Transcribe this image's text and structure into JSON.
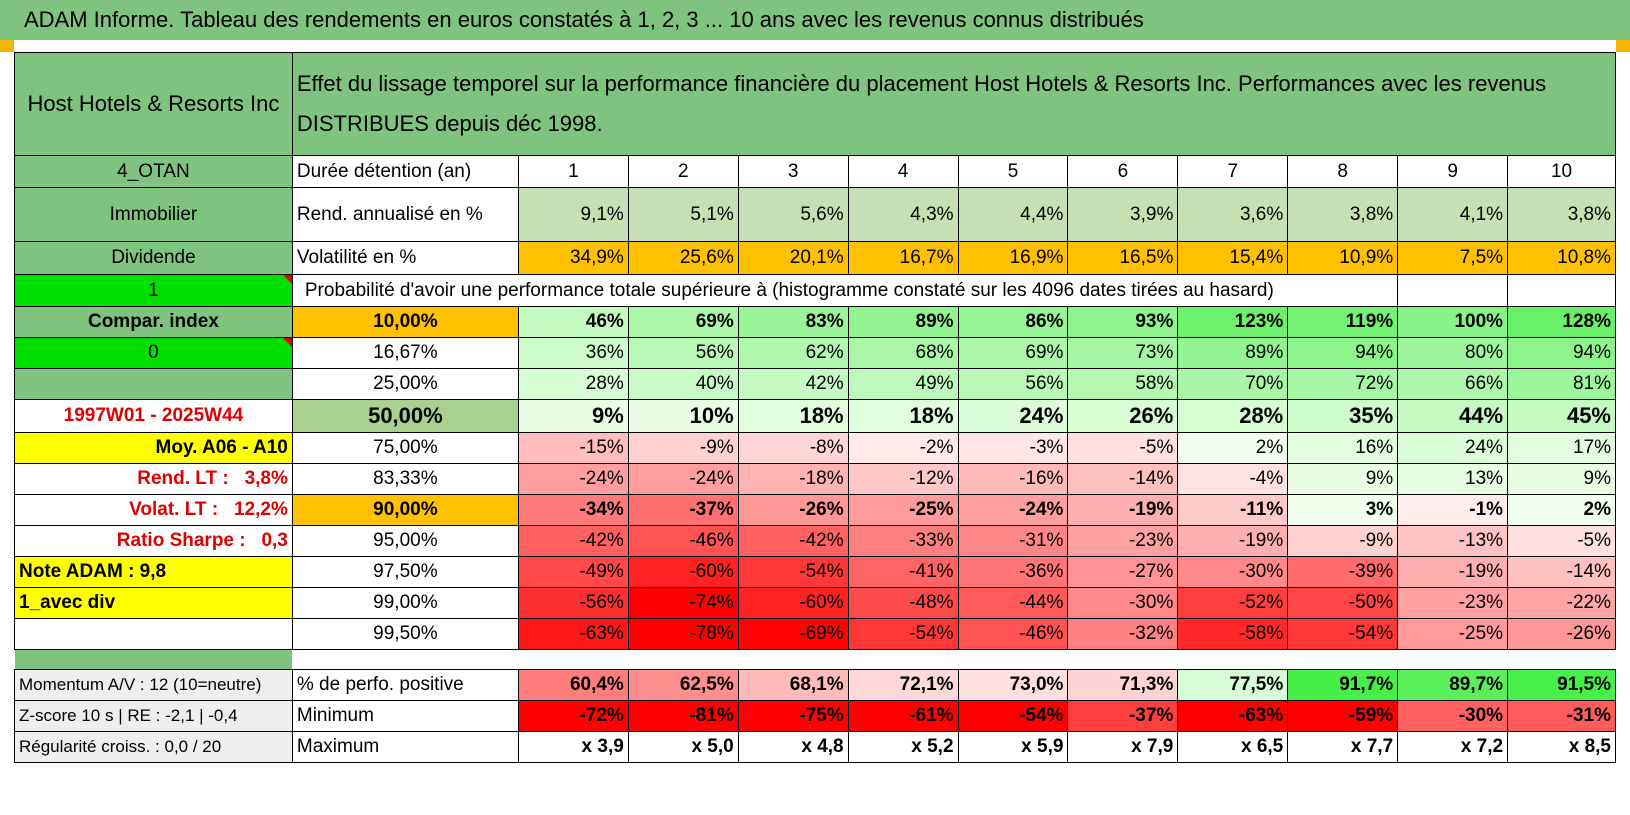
{
  "title": "ADAM Informe. Tableau des rendements en euros constatés à 1, 2, 3 ... 10 ans avec les revenus connus distribués",
  "fund_name": "Host Hotels & Resorts Inc",
  "description": "Effet du lissage temporel sur la performance financière du placement Host Hotels & Resorts Inc. Performances avec les revenus DISTRIBUES depuis déc 1998.",
  "left": {
    "code": "4_OTAN",
    "category": "Immobilier",
    "type": "Dividende",
    "flag1": "1",
    "compar": "Compar. index",
    "flag2": "0",
    "period": "1997W01 - 2025W44",
    "moy": "Moy. A06 - A10",
    "rend_lt_label": "Rend. LT :",
    "rend_lt_value": "3,8%",
    "volat_lt_label": "Volat. LT :",
    "volat_lt_value": "12,2%",
    "sharpe_label": "Ratio Sharpe :",
    "sharpe_value": "0,3",
    "note": "Note ADAM : 9,8",
    "avec_div": "1_avec div",
    "momentum": "Momentum A/V : 12 (10=neutre)",
    "zscore": "Z-score 10 s | RE : -2,1 | -0,4",
    "regularite": "Régularité croiss. : 0,0 / 20"
  },
  "labels": {
    "duree": "Durée détention (an)",
    "rend": "Rend. annualisé en %",
    "volat": "Volatilité en %",
    "proba": "Probabilité d'avoir une performance totale supérieure à (histogramme constaté sur les 4096 dates tirées au hasard)",
    "positive": "% de perfo. positive",
    "minimum": "Minimum",
    "maximum": "Maximum"
  },
  "years": [
    "1",
    "2",
    "3",
    "4",
    "5",
    "6",
    "7",
    "8",
    "9",
    "10"
  ],
  "rend": [
    "9,1%",
    "5,1%",
    "5,6%",
    "4,3%",
    "4,4%",
    "3,9%",
    "3,6%",
    "3,8%",
    "4,1%",
    "3,8%"
  ],
  "volat": [
    "34,9%",
    "25,6%",
    "20,1%",
    "16,7%",
    "16,9%",
    "16,5%",
    "15,4%",
    "10,9%",
    "7,5%",
    "10,8%"
  ],
  "percentiles": [
    {
      "p": "10,00%",
      "vals": [
        "46%",
        "69%",
        "83%",
        "89%",
        "86%",
        "93%",
        "123%",
        "119%",
        "100%",
        "128%"
      ]
    },
    {
      "p": "16,67%",
      "vals": [
        "36%",
        "56%",
        "62%",
        "68%",
        "69%",
        "73%",
        "89%",
        "94%",
        "80%",
        "94%"
      ]
    },
    {
      "p": "25,00%",
      "vals": [
        "28%",
        "40%",
        "42%",
        "49%",
        "56%",
        "58%",
        "70%",
        "72%",
        "66%",
        "81%"
      ]
    },
    {
      "p": "50,00%",
      "vals": [
        "9%",
        "10%",
        "18%",
        "18%",
        "24%",
        "26%",
        "28%",
        "35%",
        "44%",
        "45%"
      ]
    },
    {
      "p": "75,00%",
      "vals": [
        "-15%",
        "-9%",
        "-8%",
        "-2%",
        "-3%",
        "-5%",
        "2%",
        "16%",
        "24%",
        "17%"
      ]
    },
    {
      "p": "83,33%",
      "vals": [
        "-24%",
        "-24%",
        "-18%",
        "-12%",
        "-16%",
        "-14%",
        "-4%",
        "9%",
        "13%",
        "9%"
      ]
    },
    {
      "p": "90,00%",
      "vals": [
        "-34%",
        "-37%",
        "-26%",
        "-25%",
        "-24%",
        "-19%",
        "-11%",
        "3%",
        "-1%",
        "2%"
      ]
    },
    {
      "p": "95,00%",
      "vals": [
        "-42%",
        "-46%",
        "-42%",
        "-33%",
        "-31%",
        "-23%",
        "-19%",
        "-9%",
        "-13%",
        "-5%"
      ]
    },
    {
      "p": "97,50%",
      "vals": [
        "-49%",
        "-60%",
        "-54%",
        "-41%",
        "-36%",
        "-27%",
        "-30%",
        "-39%",
        "-19%",
        "-14%"
      ]
    },
    {
      "p": "99,00%",
      "vals": [
        "-56%",
        "-74%",
        "-60%",
        "-48%",
        "-44%",
        "-30%",
        "-52%",
        "-50%",
        "-23%",
        "-22%"
      ]
    },
    {
      "p": "99,50%",
      "vals": [
        "-63%",
        "-78%",
        "-69%",
        "-54%",
        "-46%",
        "-32%",
        "-58%",
        "-54%",
        "-25%",
        "-26%"
      ]
    }
  ],
  "positive": [
    "60,4%",
    "62,5%",
    "68,1%",
    "72,1%",
    "73,0%",
    "71,3%",
    "77,5%",
    "91,7%",
    "89,7%",
    "91,5%"
  ],
  "minimum": [
    "-72%",
    "-81%",
    "-75%",
    "-61%",
    "-54%",
    "-37%",
    "-63%",
    "-59%",
    "-30%",
    "-31%"
  ],
  "maximum": [
    "x 3,9",
    "x 5,0",
    "x 4,8",
    "x 5,2",
    "x 5,9",
    "x 7,9",
    "x 6,5",
    "x 7,7",
    "x 7,2",
    "x 8,5"
  ],
  "colors": {
    "header_green": "#7ec47e",
    "light_green": "#c6e0b4",
    "orange": "#ffc000",
    "yellow": "#ffff00",
    "bright_green": "#00e000",
    "red": "#e00000"
  }
}
